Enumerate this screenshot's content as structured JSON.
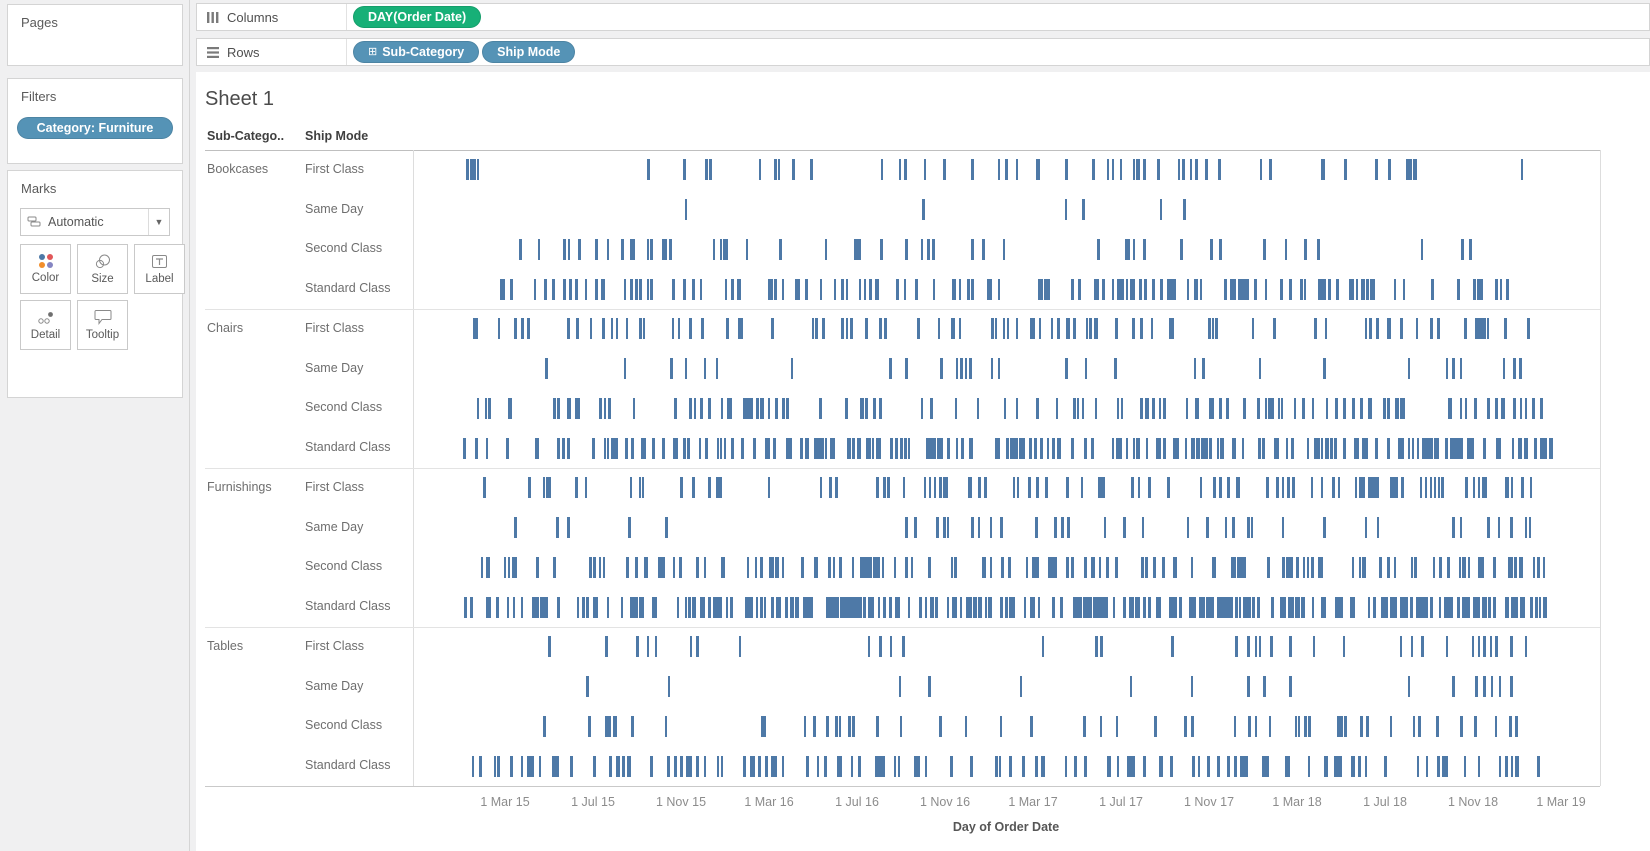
{
  "colors": {
    "mark_blue": "#4e79a7",
    "pill_green": "#17b077",
    "pill_blue": "#5593b6",
    "panel_bg": "#f0f0f1"
  },
  "sidebar": {
    "pages": {
      "label": "Pages"
    },
    "filters": {
      "label": "Filters",
      "pills": [
        {
          "label": "Category: Furniture"
        }
      ]
    },
    "marks": {
      "label": "Marks",
      "mark_type": "Automatic",
      "buttons": [
        {
          "label": "Color",
          "icon": "color-dots-icon"
        },
        {
          "label": "Size",
          "icon": "size-circles-icon"
        },
        {
          "label": "Label",
          "icon": "label-t-icon"
        },
        {
          "label": "Detail",
          "icon": "detail-dots-icon"
        },
        {
          "label": "Tooltip",
          "icon": "tooltip-bubble-icon"
        }
      ]
    }
  },
  "shelves": {
    "columns": {
      "label": "Columns",
      "pills": [
        {
          "label": "DAY(Order Date)",
          "type": "continuous"
        }
      ]
    },
    "rows": {
      "label": "Rows",
      "pills": [
        {
          "label": "Sub-Category",
          "type": "discrete",
          "expand_glyph": "⊞"
        },
        {
          "label": "Ship Mode",
          "type": "discrete"
        }
      ]
    }
  },
  "sheet": {
    "title": "Sheet 1",
    "col_headers": [
      "Sub-Catego..",
      "Ship Mode"
    ]
  },
  "chart_data": {
    "type": "gantt-tick",
    "title": "Sheet 1",
    "mark_color": "#4e79a7",
    "x_axis": {
      "title": "Day of Order Date",
      "tick_labels": [
        "1 Mar 15",
        "1 Jul 15",
        "1 Nov 15",
        "1 Mar 16",
        "1 Jul 16",
        "1 Nov 16",
        "1 Mar 17",
        "1 Jul 17",
        "1 Nov 17",
        "1 Mar 18",
        "1 Jul 18",
        "1 Nov 18",
        "1 Mar 19"
      ],
      "range_note": "order dates from ~Jan 2015 to ~Mar 2019, positions stored as 0-1 fractions of panel width"
    },
    "ship_modes": [
      "First Class",
      "Same Day",
      "Second Class",
      "Standard Class"
    ],
    "groups": [
      {
        "category": "Bookcases",
        "rows": [
          {
            "ship_mode": "First Class",
            "positions": [
              0.046,
              0.049,
              0.052,
              0.055
            ],
            "count": 52,
            "seed": 11,
            "range": [
              0.17,
              0.95
            ],
            "skew": 0.9
          },
          {
            "ship_mode": "Same Day",
            "positions": [
              0.23,
              0.43,
              0.55,
              0.565,
              0.63,
              0.65
            ]
          },
          {
            "ship_mode": "Second Class",
            "count": 52,
            "seed": 13,
            "range": [
              0.08,
              0.95
            ],
            "skew": 0.88
          },
          {
            "ship_mode": "Standard Class",
            "count": 135,
            "seed": 17,
            "range": [
              0.045,
              0.955
            ],
            "skew": 0.85
          }
        ]
      },
      {
        "category": "Chairs",
        "rows": [
          {
            "ship_mode": "First Class",
            "count": 92,
            "seed": 19,
            "range": [
              0.05,
              0.95
            ],
            "skew": 0.85
          },
          {
            "ship_mode": "Same Day",
            "positions": [
              0.112,
              0.179,
              0.218,
              0.23,
              0.246,
              0.256,
              0.319,
              0.402,
              0.416,
              0.445,
              0.458,
              0.462,
              0.466,
              0.47,
              0.488,
              0.494,
              0.551,
              0.567,
              0.592,
              0.659,
              0.666,
              0.714,
              0.768,
              0.839,
              0.871,
              0.877,
              0.883,
              0.919,
              0.928,
              0.933
            ]
          },
          {
            "ship_mode": "Second Class",
            "count": 118,
            "seed": 23,
            "range": [
              0.045,
              0.955
            ],
            "skew": 0.85
          },
          {
            "ship_mode": "Standard Class",
            "count": 215,
            "seed": 29,
            "range": [
              0.04,
              0.96
            ],
            "skew": 0.8
          }
        ]
      },
      {
        "category": "Furnishings",
        "rows": [
          {
            "ship_mode": "First Class",
            "count": 100,
            "seed": 31,
            "range": [
              0.045,
              0.955
            ],
            "skew": 0.85
          },
          {
            "ship_mode": "Same Day",
            "positions": [
              0.086,
              0.122,
              0.131,
              0.182,
              0.214,
              0.416,
              0.423,
              0.442,
              0.448,
              0.451,
              0.471,
              0.477,
              0.487,
              0.496,
              0.525,
              0.541,
              0.547,
              0.552,
              0.583,
              0.599,
              0.615,
              0.653,
              0.669,
              0.685,
              0.691,
              0.704,
              0.707,
              0.733,
              0.768,
              0.803,
              0.813,
              0.877,
              0.883,
              0.906,
              0.915,
              0.925,
              0.938,
              0.941
            ]
          },
          {
            "ship_mode": "Second Class",
            "count": 145,
            "seed": 37,
            "range": [
              0.04,
              0.955
            ],
            "skew": 0.82
          },
          {
            "ship_mode": "Standard Class",
            "count": 300,
            "seed": 41,
            "range": [
              0.04,
              0.96
            ],
            "skew": 0.78
          }
        ]
      },
      {
        "category": "Tables",
        "rows": [
          {
            "ship_mode": "First Class",
            "positions": [
              0.115,
              0.163,
              0.189,
              0.198,
              0.205,
              0.234,
              0.24,
              0.275,
              0.384,
              0.394,
              0.403,
              0.413,
              0.531,
              0.576,
              0.58,
              0.64,
              0.694,
              0.704,
              0.71,
              0.714,
              0.723,
              0.739,
              0.759,
              0.784,
              0.832,
              0.842,
              0.851,
              0.871,
              0.893,
              0.898,
              0.903,
              0.908,
              0.913,
              0.925,
              0.938
            ]
          },
          {
            "ship_mode": "Same Day",
            "positions": [
              0.147,
              0.216,
              0.41,
              0.435,
              0.512,
              0.605,
              0.656,
              0.704,
              0.717,
              0.739,
              0.839,
              0.877,
              0.896,
              0.903,
              0.909,
              0.916,
              0.925
            ]
          },
          {
            "ship_mode": "Second Class",
            "count": 58,
            "seed": 43,
            "range": [
              0.09,
              0.93
            ],
            "skew": 0.85
          },
          {
            "ship_mode": "Standard Class",
            "count": 125,
            "seed": 47,
            "range": [
              0.05,
              0.95
            ],
            "skew": 0.85
          }
        ]
      }
    ]
  }
}
